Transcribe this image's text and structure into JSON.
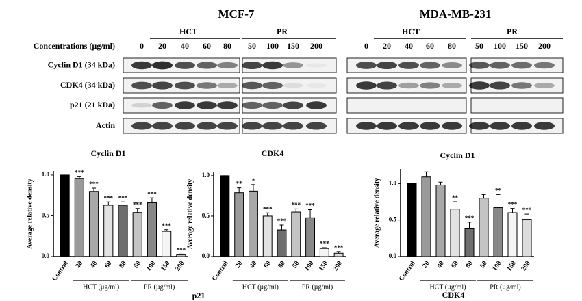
{
  "blot": {
    "panels": [
      "MCF-7",
      "MDA-MB-231"
    ],
    "groups": [
      "HCT",
      "PR"
    ],
    "concentration_label": "Concentrations (µg/ml)",
    "concentrations": [
      "0",
      "20",
      "40",
      "60",
      "80",
      "50",
      "100",
      "150",
      "200"
    ],
    "rows": [
      "Cyclin D1 (34 kDa)",
      "CDK4 (34 kDa)",
      "p21 (21 kDa)",
      "Actin"
    ]
  },
  "chart_data": [
    {
      "type": "bar",
      "title": "Cyclin D1",
      "ylabel": "Average relative density",
      "categories": [
        "Control",
        "20",
        "40",
        "60",
        "80",
        "50",
        "100",
        "150",
        "200"
      ],
      "values": [
        1.0,
        0.96,
        0.8,
        0.63,
        0.63,
        0.54,
        0.66,
        0.31,
        0.02
      ],
      "errors": [
        0,
        0.02,
        0.04,
        0.04,
        0.04,
        0.05,
        0.06,
        0.02,
        0.01
      ],
      "annotations": [
        null,
        "***",
        "***",
        "***",
        "***",
        "***",
        "***",
        "***",
        "***"
      ],
      "colors": [
        "#000000",
        "#9a9a9a",
        "#a8a8a8",
        "#e2e2e2",
        "#6e6e6e",
        "#c4c4c4",
        "#888888",
        "#f4f4f4",
        "#dcdcdc"
      ],
      "groups": [
        "HCT (µg/ml)",
        "PR (µg/ml)"
      ],
      "ylim": [
        0,
        1.05
      ],
      "yticks": [
        {
          "value": 0,
          "label": "0.0"
        },
        {
          "value": 0.5,
          "label": "0.5"
        },
        {
          "value": 1,
          "label": "1.0"
        }
      ]
    },
    {
      "type": "bar",
      "title": "CDK4",
      "ylabel": "Average relative density",
      "categories": [
        "Control",
        "20",
        "40",
        "60",
        "80",
        "50",
        "100",
        "150",
        "200"
      ],
      "values": [
        1.0,
        0.79,
        0.81,
        0.5,
        0.33,
        0.55,
        0.48,
        0.1,
        0.04
      ],
      "errors": [
        0,
        0.06,
        0.08,
        0.04,
        0.06,
        0.04,
        0.1,
        0.01,
        0.02
      ],
      "annotations": [
        null,
        "**",
        "*",
        "***",
        "***",
        "***",
        "***",
        "***",
        "***"
      ],
      "colors": [
        "#000000",
        "#9a9a9a",
        "#a8a8a8",
        "#e2e2e2",
        "#6e6e6e",
        "#c4c4c4",
        "#888888",
        "#f4f4f4",
        "#dcdcdc"
      ],
      "groups": [
        "HCT (µg/ml)",
        "PR (µg/ml)"
      ],
      "ylim": [
        0,
        1.05
      ],
      "yticks": [
        {
          "value": 0,
          "label": "0.0"
        },
        {
          "value": 0.5,
          "label": "0.5"
        },
        {
          "value": 1,
          "label": "1.0"
        }
      ]
    },
    {
      "type": "bar",
      "title": "Cyclin D1",
      "ylabel": "Average relative density",
      "categories": [
        "Control",
        "20",
        "40",
        "60",
        "80",
        "50",
        "100",
        "150",
        "200"
      ],
      "values": [
        1.0,
        1.09,
        0.98,
        0.65,
        0.38,
        0.8,
        0.67,
        0.6,
        0.51
      ],
      "errors": [
        0,
        0.07,
        0.04,
        0.1,
        0.09,
        0.05,
        0.18,
        0.06,
        0.07
      ],
      "annotations": [
        null,
        null,
        null,
        "**",
        "***",
        null,
        "**",
        "***",
        "***"
      ],
      "colors": [
        "#000000",
        "#9a9a9a",
        "#a8a8a8",
        "#e2e2e2",
        "#6e6e6e",
        "#c4c4c4",
        "#888888",
        "#f4f4f4",
        "#dcdcdc"
      ],
      "groups": [
        "HCT (µg/ml)",
        "PR (µg/ml)"
      ],
      "ylim": [
        0,
        1.2
      ],
      "yticks": [
        {
          "value": 0,
          "label": "0.0"
        },
        {
          "value": 0.5,
          "label": "0.5"
        },
        {
          "value": 1,
          "label": "1.0"
        }
      ]
    }
  ],
  "footer_labels": [
    "p21",
    "CDK4"
  ]
}
